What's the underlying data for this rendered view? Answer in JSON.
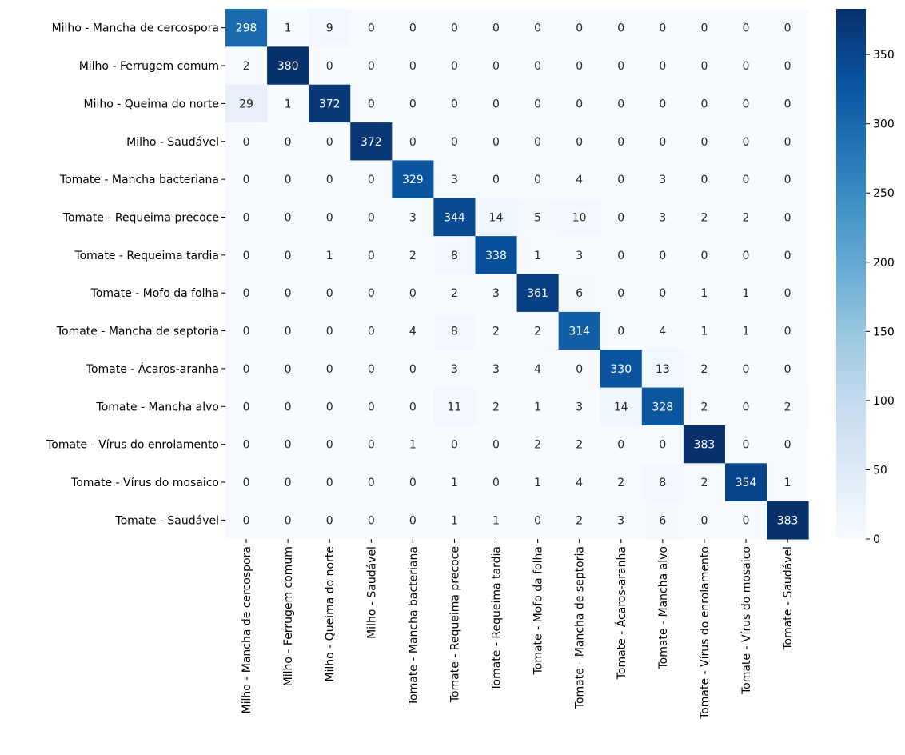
{
  "chart_data": {
    "type": "heatmap",
    "title": "",
    "xlabel": "",
    "ylabel": "",
    "row_labels": [
      "Milho - Mancha de cercospora",
      "Milho - Ferrugem comum",
      "Milho - Queima do norte",
      "Milho - Saudável",
      "Tomate - Mancha bacteriana",
      "Tomate - Requeima precoce",
      "Tomate - Requeima tardia",
      "Tomate - Mofo da folha",
      "Tomate - Mancha de septoria",
      "Tomate - Ácaros-aranha",
      "Tomate - Mancha alvo",
      "Tomate - Vírus do enrolamento",
      "Tomate - Vírus do mosaico",
      "Tomate - Saudável"
    ],
    "col_labels": [
      "Milho - Mancha de cercospora",
      "Milho - Ferrugem comum",
      "Milho - Queima do norte",
      "Milho - Saudável",
      "Tomate - Mancha bacteriana",
      "Tomate - Requeima precoce",
      "Tomate - Requeima tardia",
      "Tomate - Mofo da folha",
      "Tomate - Mancha de septoria",
      "Tomate - Ácaros-aranha",
      "Tomate - Mancha alvo",
      "Tomate - Vírus do enrolamento",
      "Tomate - Vírus do mosaico",
      "Tomate - Saudável"
    ],
    "values": [
      [
        298,
        1,
        9,
        0,
        0,
        0,
        0,
        0,
        0,
        0,
        0,
        0,
        0,
        0
      ],
      [
        2,
        380,
        0,
        0,
        0,
        0,
        0,
        0,
        0,
        0,
        0,
        0,
        0,
        0
      ],
      [
        29,
        1,
        372,
        0,
        0,
        0,
        0,
        0,
        0,
        0,
        0,
        0,
        0,
        0
      ],
      [
        0,
        0,
        0,
        372,
        0,
        0,
        0,
        0,
        0,
        0,
        0,
        0,
        0,
        0
      ],
      [
        0,
        0,
        0,
        0,
        329,
        3,
        0,
        0,
        4,
        0,
        3,
        0,
        0,
        0
      ],
      [
        0,
        0,
        0,
        0,
        3,
        344,
        14,
        5,
        10,
        0,
        3,
        2,
        2,
        0
      ],
      [
        0,
        0,
        1,
        0,
        2,
        8,
        338,
        1,
        3,
        0,
        0,
        0,
        0,
        0
      ],
      [
        0,
        0,
        0,
        0,
        0,
        2,
        3,
        361,
        6,
        0,
        0,
        1,
        1,
        0
      ],
      [
        0,
        0,
        0,
        0,
        4,
        8,
        2,
        2,
        314,
        0,
        4,
        1,
        1,
        0
      ],
      [
        0,
        0,
        0,
        0,
        0,
        3,
        3,
        4,
        0,
        330,
        13,
        2,
        0,
        0
      ],
      [
        0,
        0,
        0,
        0,
        0,
        11,
        2,
        1,
        3,
        14,
        328,
        2,
        0,
        2
      ],
      [
        0,
        0,
        0,
        0,
        1,
        0,
        0,
        2,
        2,
        0,
        0,
        383,
        0,
        0
      ],
      [
        0,
        0,
        0,
        0,
        0,
        1,
        0,
        1,
        4,
        2,
        8,
        2,
        354,
        1
      ],
      [
        0,
        0,
        0,
        0,
        0,
        1,
        1,
        0,
        2,
        3,
        6,
        0,
        0,
        383
      ]
    ],
    "colormap": "Blues",
    "vmin": 0,
    "vmax": 383,
    "colorbar": {
      "ticks": [
        0,
        50,
        100,
        150,
        200,
        250,
        300,
        350
      ],
      "position": "right"
    },
    "grid": false,
    "annotations": true,
    "colors": {
      "low": "#f7fbff",
      "high": "#08306b",
      "text_dark": "#262626",
      "text_light": "#ffffff"
    }
  }
}
